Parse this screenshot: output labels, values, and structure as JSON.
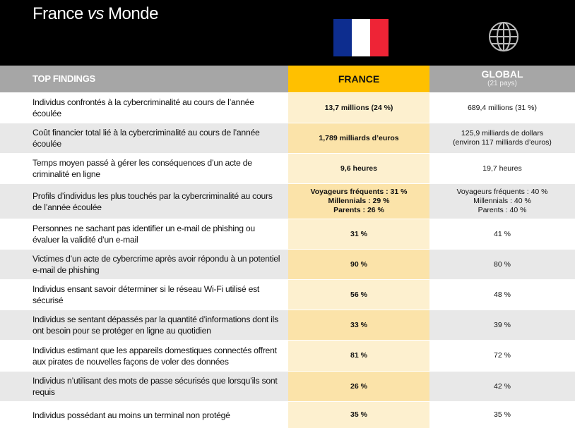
{
  "header": {
    "title_start": "France",
    "title_emphasis": "vs",
    "title_end": "Monde"
  },
  "table": {
    "columns": {
      "finding": "TOP FINDINGS",
      "france": "FRANCE",
      "global": "GLOBAL",
      "global_note": "(21 pays)"
    },
    "rows": [
      {
        "finding": "Individus confrontés à la cybercriminalité au cours de l’année écoulée",
        "france": [
          "13,7 millions (24 %)"
        ],
        "global": [
          "689,4 millions (31 %)"
        ]
      },
      {
        "finding": "Coût financier total lié à la cybercriminalité au cours de l’année écoulée",
        "france": [
          "1,789 milliards d’euros"
        ],
        "global": [
          "125,9 milliards de dollars",
          "(environ 117 milliards d’euros)"
        ]
      },
      {
        "finding": "Temps moyen passé à gérer les conséquences d’un acte de criminalité en ligne",
        "france": [
          "9,6 heures"
        ],
        "global": [
          "19,7 heures"
        ]
      },
      {
        "finding": "Profils d’individus les plus touchés par la cybercriminalité au cours de l’année écoulée",
        "france": [
          "Voyageurs fréquents : 31 %",
          "Millennials : 29 %",
          "Parents : 26 %"
        ],
        "global": [
          "Voyageurs fréquents : 40 %",
          "Millennials : 40 %",
          "Parents : 40 %"
        ]
      },
      {
        "finding": "Personnes ne sachant pas identifier un e-mail de phishing ou évaluer la validité d’un e-mail",
        "france": [
          "31 %"
        ],
        "global": [
          "41 %"
        ]
      },
      {
        "finding": "Victimes d’un acte de cybercrime après avoir répondu à un potentiel e-mail de phishing",
        "france": [
          "90 %"
        ],
        "global": [
          "80 %"
        ]
      },
      {
        "finding": "Individus ensant savoir déterminer si le réseau Wi-Fi utilisé est sécurisé",
        "france": [
          "56 %"
        ],
        "global": [
          "48 %"
        ]
      },
      {
        "finding": "Individus se sentant dépassés par la quantité d’informations dont ils ont besoin pour se protéger en ligne au quotidien",
        "france": [
          "33 %"
        ],
        "global": [
          "39 %"
        ]
      },
      {
        "finding": "Individus estimant que les appareils domestiques connectés offrent aux pirates de nouvelles façons de voler des données",
        "france": [
          "81 %"
        ],
        "global": [
          "72 %"
        ]
      },
      {
        "finding": "Individus n’utilisant des mots de passe sécurisés que lorsqu’ils sont requis",
        "france": [
          "26 %"
        ],
        "global": [
          "42 %"
        ]
      },
      {
        "finding": "Individus possédant au moins un terminal non protégé",
        "france": [
          "35 %"
        ],
        "global": [
          "35 %"
        ]
      }
    ]
  }
}
